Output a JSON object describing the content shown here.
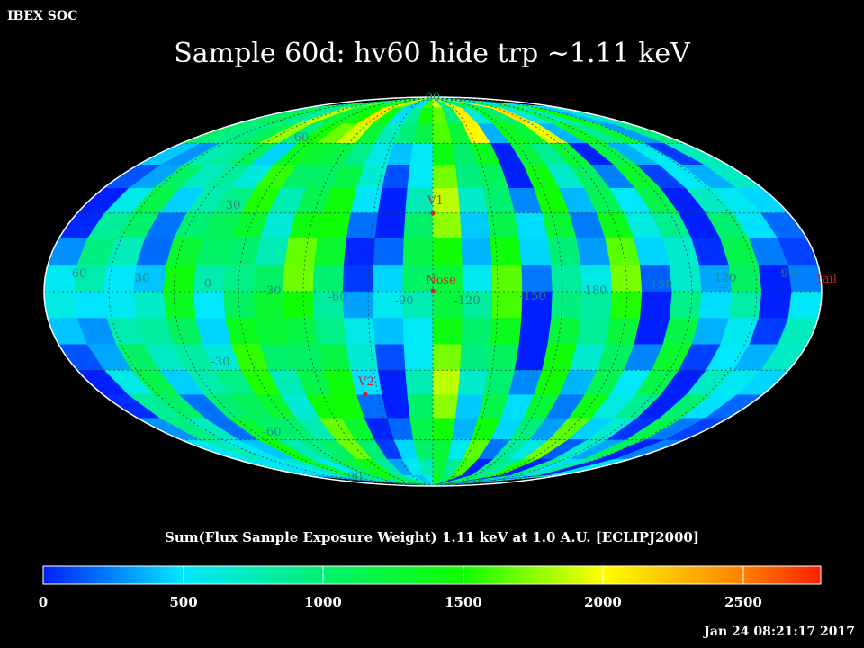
{
  "header": {
    "corner": "IBEX SOC",
    "title": "Sample 60d: hv60 hide trp ~1.11 keV"
  },
  "map": {
    "projection": "mollweide",
    "frame": "ECLIPJ2000",
    "lat_labels": [
      "90",
      "60",
      "30",
      "-30",
      "-60",
      "-90"
    ],
    "lon_labels": [
      "60",
      "30",
      "0",
      "-30",
      "-60",
      "-90",
      "-120",
      "-150",
      "180",
      "150",
      "120",
      "90"
    ],
    "markers": [
      {
        "name": "V1",
        "color": "#d02020"
      },
      {
        "name": "Nose",
        "color": "#d02020"
      },
      {
        "name": "V2",
        "color": "#d02020"
      },
      {
        "name": "Tail",
        "color": "#d02020"
      }
    ]
  },
  "colorbar": {
    "label": "Sum(Flux Sample Exposure Weight)  1.11 keV at 1.0 A.U. [ECLIPJ2000]",
    "min": 0,
    "max": 2800,
    "ticks": [
      "0",
      "500",
      "1000",
      "1500",
      "2000",
      "2500"
    ]
  },
  "footer": {
    "timestamp": "Jan 24 08:21:17 2017"
  }
}
